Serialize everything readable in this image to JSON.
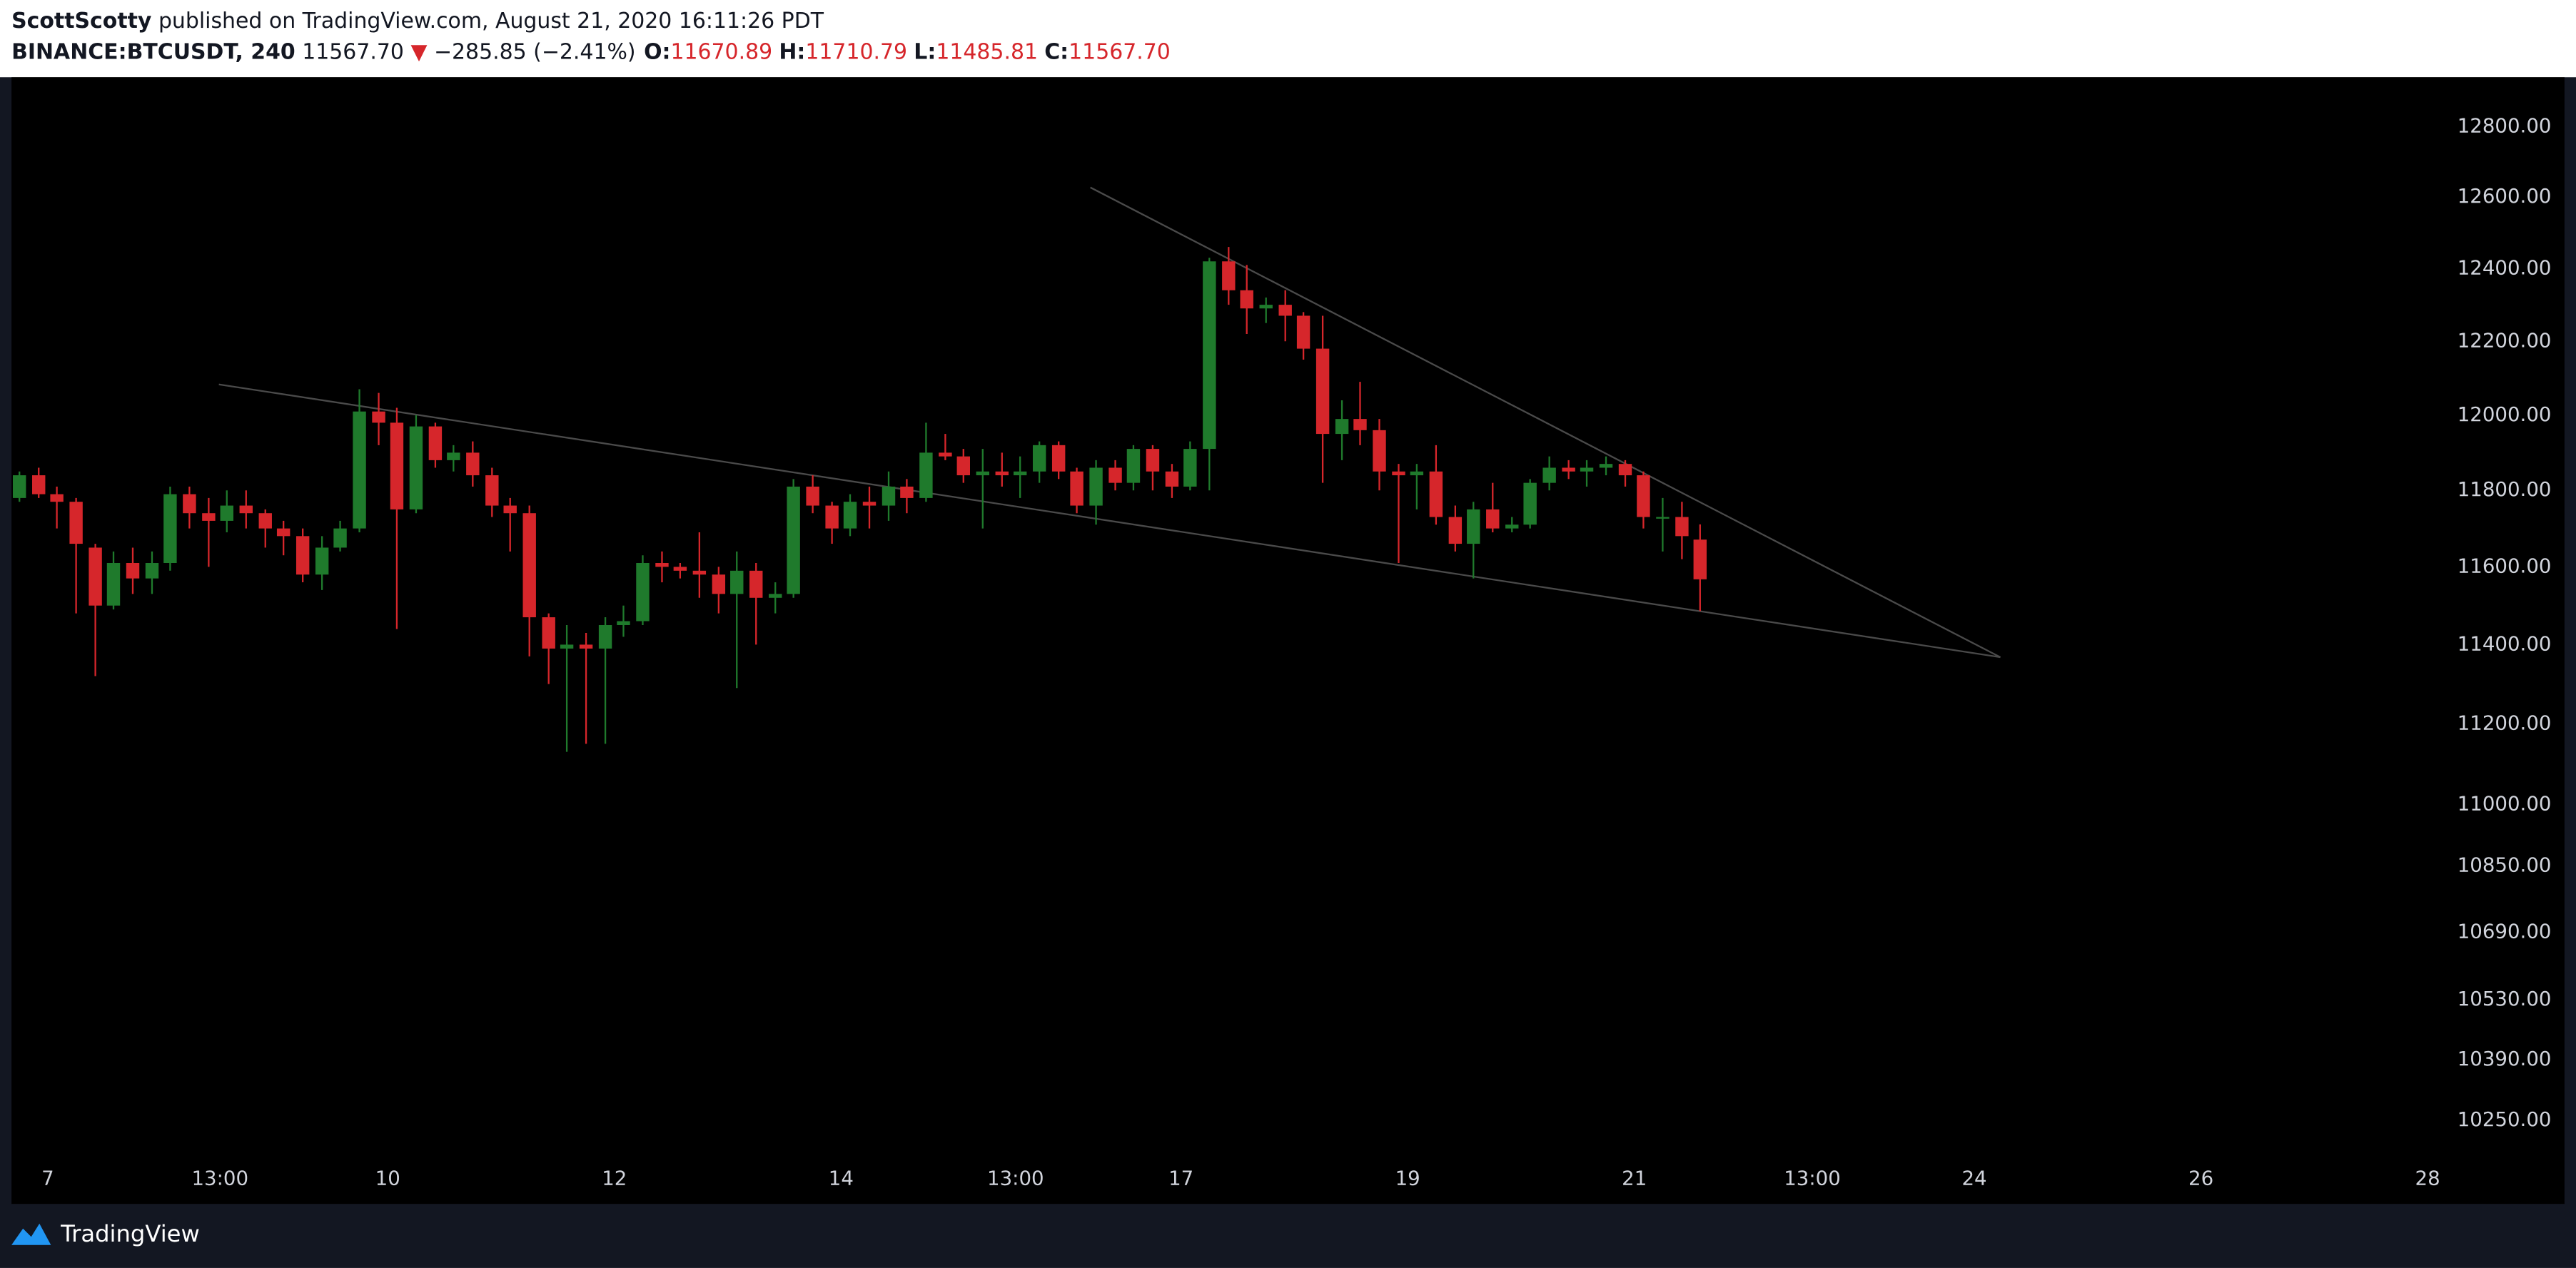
{
  "header": {
    "author": "ScottScotty",
    "published": "published on TradingView.com, August 21, 2020 16:11:26 PDT",
    "symbol": "BINANCE:BTCUSDT, 240",
    "last": "11567.70",
    "change_arrow": "▼",
    "change": "−285.85 (−2.41%)",
    "ohlc": [
      {
        "label": "O:",
        "value": "11670.89"
      },
      {
        "label": "H:",
        "value": "11710.79"
      },
      {
        "label": "L:",
        "value": "11485.81"
      },
      {
        "label": "C:",
        "value": "11567.70"
      }
    ]
  },
  "chart_data": {
    "type": "candlestick",
    "x": [
      6.75,
      6.92,
      7.08,
      7.25,
      7.42,
      7.58,
      7.75,
      7.92,
      8.08,
      8.25,
      8.42,
      8.58,
      8.75,
      8.92,
      9.08,
      9.25,
      9.42,
      9.58,
      9.75,
      9.92,
      10.08,
      10.25,
      10.42,
      10.58,
      10.75,
      10.92,
      11.08,
      11.25,
      11.42,
      11.58,
      11.75,
      11.92,
      12.08,
      12.25,
      12.42,
      12.58,
      12.75,
      12.92,
      13.08,
      13.25,
      13.42,
      13.58,
      13.75,
      13.92,
      14.08,
      14.25,
      14.42,
      14.58,
      14.75,
      14.92,
      15.08,
      15.25,
      15.42,
      15.58,
      15.75,
      15.92,
      16.08,
      16.25,
      16.42,
      16.58,
      16.75,
      16.92,
      17.08,
      17.25,
      17.42,
      17.58,
      17.75,
      17.92,
      18.08,
      18.25,
      18.42,
      18.58,
      18.75,
      18.92,
      19.08,
      19.25,
      19.42,
      19.58,
      19.75,
      19.92,
      20.08,
      20.25,
      20.42,
      20.58,
      20.75,
      20.92,
      21.08,
      21.25,
      21.42,
      21.58
    ],
    "open": [
      11780,
      11840,
      11790,
      11770,
      11650,
      11500,
      11610,
      11570,
      11610,
      11790,
      11740,
      11720,
      11760,
      11740,
      11700,
      11680,
      11580,
      11650,
      11700,
      12010,
      11980,
      11750,
      11970,
      11880,
      11900,
      11840,
      11760,
      11740,
      11470,
      11390,
      11400,
      11390,
      11450,
      11460,
      11610,
      11600,
      11590,
      11580,
      11530,
      11590,
      11520,
      11530,
      11810,
      11760,
      11700,
      11770,
      11760,
      11810,
      11780,
      11900,
      11890,
      11840,
      11850,
      11840,
      11850,
      11920,
      11850,
      11760,
      11860,
      11820,
      11910,
      11850,
      11810,
      11910,
      12420,
      12340,
      12290,
      12300,
      12270,
      12180,
      11950,
      11990,
      11960,
      11850,
      11840,
      11850,
      11730,
      11660,
      11750,
      11700,
      11710,
      11820,
      11860,
      11850,
      11860,
      11870,
      11840,
      11730,
      11730,
      11670.89
    ],
    "high": [
      11850,
      11860,
      11810,
      11780,
      11660,
      11640,
      11650,
      11640,
      11810,
      11810,
      11780,
      11800,
      11800,
      11750,
      11720,
      11700,
      11680,
      11720,
      12070,
      12060,
      12020,
      12000,
      11980,
      11920,
      11930,
      11860,
      11780,
      11760,
      11480,
      11450,
      11430,
      11470,
      11500,
      11630,
      11640,
      11610,
      11690,
      11600,
      11640,
      11610,
      11560,
      11830,
      11840,
      11770,
      11790,
      11810,
      11850,
      11830,
      11980,
      11950,
      11910,
      11910,
      11900,
      11890,
      11930,
      11930,
      11860,
      11880,
      11880,
      11920,
      11920,
      11870,
      11930,
      12430,
      12460,
      12410,
      12320,
      12340,
      12280,
      12270,
      12040,
      12090,
      11990,
      11870,
      11870,
      11920,
      11760,
      11770,
      11820,
      11730,
      11830,
      11890,
      11880,
      11880,
      11890,
      11880,
      11850,
      11780,
      11770,
      11710.79
    ],
    "low": [
      11770,
      11780,
      11700,
      11480,
      11320,
      11490,
      11530,
      11530,
      11590,
      11700,
      11600,
      11690,
      11700,
      11650,
      11630,
      11560,
      11540,
      11640,
      11690,
      11920,
      11440,
      11740,
      11860,
      11850,
      11810,
      11730,
      11640,
      11370,
      11300,
      11130,
      11150,
      11150,
      11420,
      11450,
      11560,
      11570,
      11520,
      11480,
      11290,
      11400,
      11480,
      11520,
      11740,
      11660,
      11680,
      11700,
      11720,
      11740,
      11770,
      11880,
      11820,
      11700,
      11810,
      11780,
      11820,
      11830,
      11740,
      11710,
      11800,
      11800,
      11800,
      11780,
      11800,
      11800,
      12300,
      12220,
      12250,
      12200,
      12150,
      11820,
      11880,
      11920,
      11800,
      11610,
      11750,
      11710,
      11640,
      11570,
      11690,
      11690,
      11700,
      11800,
      11830,
      11810,
      11840,
      11810,
      11700,
      11640,
      11620,
      11485.81
    ],
    "close": [
      11840,
      11790,
      11770,
      11660,
      11500,
      11610,
      11570,
      11610,
      11790,
      11740,
      11720,
      11760,
      11740,
      11700,
      11680,
      11580,
      11650,
      11700,
      12010,
      11980,
      11750,
      11970,
      11880,
      11900,
      11840,
      11760,
      11740,
      11470,
      11390,
      11400,
      11390,
      11450,
      11460,
      11610,
      11600,
      11590,
      11580,
      11530,
      11590,
      11520,
      11530,
      11810,
      11760,
      11700,
      11770,
      11760,
      11810,
      11780,
      11900,
      11890,
      11840,
      11850,
      11840,
      11850,
      11920,
      11850,
      11760,
      11860,
      11820,
      11910,
      11850,
      11810,
      11910,
      12420,
      12340,
      12290,
      12300,
      12270,
      12180,
      11950,
      11990,
      11960,
      11850,
      11840,
      11850,
      11730,
      11660,
      11750,
      11700,
      11710,
      11820,
      11860,
      11850,
      11860,
      11870,
      11840,
      11730,
      11730,
      11680,
      11567.7
    ],
    "up_color": "#1f7a2c",
    "down_color": "#d6262b",
    "trendline_color": "#4a4a4a",
    "xlim": [
      6.68,
      28.28
    ],
    "xticks": [
      7,
      {
        "value": 8.52,
        "label": "13:00"
      },
      10,
      12,
      14,
      {
        "value": 15.54,
        "label": "13:00"
      },
      17,
      19,
      21,
      {
        "value": 22.57,
        "label": "13:00"
      },
      24,
      26,
      28
    ],
    "ylim": [
      10164,
      12942
    ],
    "log_scale": true,
    "yticks": [
      {
        "value": 12800,
        "label": "12800.00"
      },
      {
        "value": 12600,
        "label": "12600.00"
      },
      {
        "value": 12400,
        "label": "12400.00"
      },
      {
        "value": 12200,
        "label": "12200.00"
      },
      {
        "value": 12000,
        "label": "12000.00"
      },
      {
        "value": 11800,
        "label": "11800.00"
      },
      {
        "value": 11600,
        "label": "11600.00"
      },
      {
        "value": 11400,
        "label": "11400.00"
      },
      {
        "value": 11200,
        "label": "11200.00"
      },
      {
        "value": 11000,
        "label": "11000.00"
      },
      {
        "value": 10850,
        "label": "10850.00"
      },
      {
        "value": 10690,
        "label": "10690.00"
      },
      {
        "value": 10530,
        "label": "10530.00"
      },
      {
        "value": 10390,
        "label": "10390.00"
      },
      {
        "value": 10250,
        "label": "10250.00"
      }
    ],
    "trendlines": [
      {
        "x": [
          16.2,
          24.23
        ],
        "y": [
          12627,
          11368
        ]
      },
      {
        "x": [
          8.51,
          24.23
        ],
        "y": [
          12083,
          11368
        ]
      }
    ]
  },
  "footer": {
    "brand": "TradingView"
  }
}
